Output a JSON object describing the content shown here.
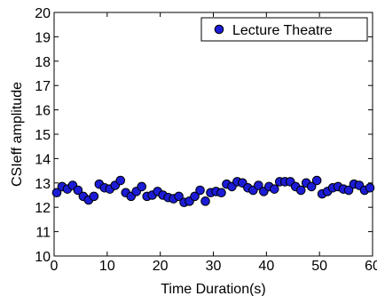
{
  "chart_data": {
    "type": "scatter",
    "xlabel": "Time Duration(s)",
    "ylabel": "CSIeff amplitude",
    "xlim": [
      0,
      60
    ],
    "ylim": [
      10,
      20
    ],
    "xticks": [
      0,
      10,
      20,
      30,
      40,
      50,
      60
    ],
    "yticks": [
      10,
      11,
      12,
      13,
      14,
      15,
      16,
      17,
      18,
      19,
      20
    ],
    "grid": false,
    "legend_position": "top-right",
    "marker_color": "#1c1cd6",
    "series": [
      {
        "name": "Lecture Theatre",
        "x": [
          0.5,
          1.5,
          2.5,
          3.5,
          4.5,
          5.5,
          6.5,
          7.5,
          8.5,
          9.5,
          10.5,
          11.5,
          12.5,
          13.5,
          14.5,
          15.5,
          16.5,
          17.5,
          18.5,
          19.5,
          20.5,
          21.5,
          22.5,
          23.5,
          24.5,
          25.5,
          26.5,
          27.5,
          28.5,
          29.5,
          30.5,
          31.5,
          32.5,
          33.5,
          34.5,
          35.5,
          36.5,
          37.5,
          38.5,
          39.5,
          40.5,
          41.5,
          42.5,
          43.5,
          44.5,
          45.5,
          46.5,
          47.5,
          48.5,
          49.5,
          50.5,
          51.5,
          52.5,
          53.5,
          54.5,
          55.5,
          56.5,
          57.5,
          58.5,
          59.5
        ],
        "y": [
          12.6,
          12.85,
          12.75,
          12.9,
          12.7,
          12.45,
          12.3,
          12.45,
          12.95,
          12.8,
          12.75,
          12.9,
          13.1,
          12.6,
          12.45,
          12.65,
          12.85,
          12.45,
          12.5,
          12.65,
          12.5,
          12.4,
          12.35,
          12.45,
          12.2,
          12.25,
          12.45,
          12.7,
          12.25,
          12.6,
          12.65,
          12.6,
          12.95,
          12.85,
          13.05,
          13.0,
          12.8,
          12.7,
          12.9,
          12.65,
          12.85,
          12.75,
          13.05,
          13.05,
          13.05,
          12.85,
          12.7,
          13.0,
          12.85,
          13.1,
          12.55,
          12.65,
          12.8,
          12.85,
          12.75,
          12.7,
          12.95,
          12.9,
          12.7,
          12.8
        ]
      }
    ]
  }
}
